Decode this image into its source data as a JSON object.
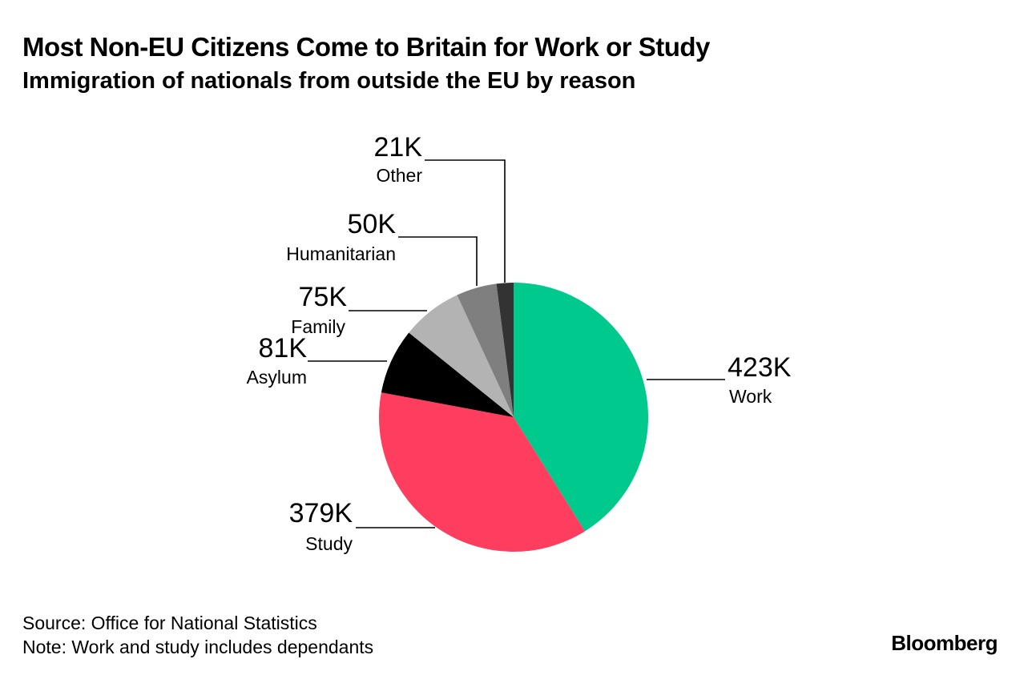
{
  "header": {
    "title": "Most Non-EU Citizens Come to Britain for Work or Study",
    "subtitle": "Immigration of nationals from outside the EU by reason"
  },
  "footer": {
    "source": "Source: Office for National Statistics",
    "note": "Note: Work and study includes dependants",
    "logo": "Bloomberg"
  },
  "chart_data": {
    "type": "pie",
    "title": "Most Non-EU Citizens Come to Britain for Work or Study",
    "subtitle": "Immigration of nationals from outside the EU by reason",
    "legend": "none",
    "slices": [
      {
        "label": "Work",
        "value": 423,
        "value_label": "423K",
        "color": "#00c98d"
      },
      {
        "label": "Study",
        "value": 379,
        "value_label": "379K",
        "color": "#ff3d5e"
      },
      {
        "label": "Asylum",
        "value": 81,
        "value_label": "81K",
        "color": "#000000"
      },
      {
        "label": "Family",
        "value": 75,
        "value_label": "75K",
        "color": "#b3b3b3"
      },
      {
        "label": "Humanitarian",
        "value": 50,
        "value_label": "50K",
        "color": "#7f7f7f"
      },
      {
        "label": "Other",
        "value": 21,
        "value_label": "21K",
        "color": "#333333"
      }
    ]
  }
}
